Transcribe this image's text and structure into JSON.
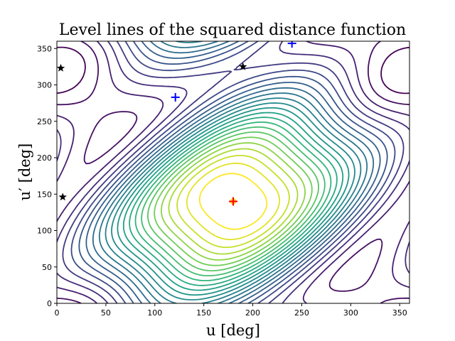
{
  "chart_data": {
    "type": "contour",
    "title": "Level lines of the squared distance function",
    "xlabel": "u [deg]",
    "ylabel": "u′ [deg]",
    "xlim": [
      0,
      360
    ],
    "ylim": [
      0,
      360
    ],
    "xticks": [
      0,
      50,
      100,
      150,
      200,
      250,
      300,
      350
    ],
    "yticks": [
      0,
      50,
      100,
      150,
      200,
      250,
      300,
      350
    ],
    "grid": false,
    "colormap": "viridis",
    "n_levels": 24,
    "minimum": {
      "u": 180,
      "u_prime": 140
    },
    "markers": {
      "red_plus": [
        {
          "u": 180,
          "u_prime": 140
        }
      ],
      "blue_plus": [
        {
          "u": 121,
          "u_prime": 283
        },
        {
          "u": 240,
          "u_prime": 357
        }
      ],
      "black_star": [
        {
          "u": 4,
          "u_prime": 323
        },
        {
          "u": 6,
          "u_prime": 146
        },
        {
          "u": 190,
          "u_prime": 325
        }
      ]
    },
    "marker_colors": {
      "red_plus": "#ff0000",
      "blue_plus": "#0000ff",
      "black_star": "#000000",
      "minimum_fill": "#ffd21a"
    }
  }
}
